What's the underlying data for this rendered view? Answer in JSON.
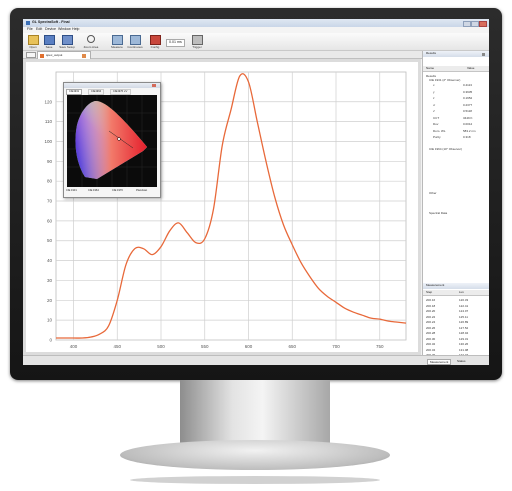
{
  "window": {
    "title": "GL SpectraSoft - Final",
    "menu": [
      "File",
      "Edit",
      "Device",
      "Window",
      "Help"
    ]
  },
  "toolbar": {
    "buttons": [
      {
        "label": "Open",
        "icon": "folder-icon"
      },
      {
        "label": "Save",
        "icon": "save-icon"
      },
      {
        "label": "Save Setup",
        "icon": "save-setup-icon"
      },
      {
        "label": "Zoom Area",
        "icon": "zoom-icon"
      },
      {
        "label": "Measure",
        "icon": "measure-icon"
      },
      {
        "label": "Continuous",
        "icon": "continuous-icon"
      },
      {
        "label": "Config",
        "icon": "config-icon"
      },
      {
        "label": "Trigger",
        "icon": "trigger-icon"
      }
    ],
    "integration_time": "0.01 ms"
  },
  "tabs": [
    {
      "label": "spec_output",
      "active": true
    }
  ],
  "results_panel": {
    "title": "Results",
    "column_headers": [
      "Name",
      "Value"
    ],
    "root": "Results",
    "groups": [
      "CIE 1931 (2° Observer)",
      "CIE 1964 (10° Observer)",
      "Other",
      "Measurement",
      "Spectral Data"
    ],
    "rows": [
      {
        "k": "x",
        "v": "0.4113"
      },
      {
        "k": "y",
        "v": "0.3935"
      },
      {
        "k": "z",
        "v": "0.1952"
      },
      {
        "k": "u'",
        "v": "0.2377"
      },
      {
        "k": "v'",
        "v": "0.5118"
      },
      {
        "k": "CCT",
        "v": "3449 K"
      },
      {
        "k": "Duv",
        "v": "0.0012"
      },
      {
        "k": "Dom. WL",
        "v": "583.2 nm"
      },
      {
        "k": "Purity",
        "v": "0.318"
      }
    ]
  },
  "measurement_panel": {
    "title": "Measurement",
    "column_headers": [
      "Step",
      "Lux"
    ],
    "rows": [
      [
        "200.16",
        "120.33"
      ],
      [
        "200.18",
        "122.41"
      ],
      [
        "200.20",
        "124.07"
      ],
      [
        "200.22",
        "125.11"
      ],
      [
        "200.24",
        "126.89"
      ],
      [
        "200.26",
        "127.52"
      ],
      [
        "200.28",
        "128.04"
      ],
      [
        "200.30",
        "129.31"
      ],
      [
        "200.32",
        "130.26"
      ],
      [
        "200.34",
        "131.08"
      ],
      [
        "200.36",
        "132.77"
      ],
      [
        "200.38",
        "133.15"
      ],
      [
        "200.40",
        "134.60"
      ],
      [
        "200.42",
        "135.02"
      ],
      [
        "200.44",
        "136.48"
      ]
    ]
  },
  "status_tabs": [
    "Measurement",
    "Status"
  ],
  "popup": {
    "tabs": [
      "CIE1931",
      "CIE1964",
      "CIE1976 u'v'"
    ],
    "options": [
      "CIE 1931",
      "CIE 1964",
      "CIE 1976",
      "Planckian"
    ]
  },
  "chart_data": {
    "type": "line",
    "title": "",
    "xlabel": "",
    "ylabel": "",
    "x": [
      380,
      390,
      400,
      410,
      420,
      430,
      440,
      450,
      460,
      470,
      480,
      490,
      500,
      510,
      520,
      530,
      540,
      550,
      560,
      570,
      580,
      590,
      600,
      610,
      620,
      630,
      640,
      650,
      660,
      670,
      680,
      690,
      700,
      710,
      720,
      730,
      740,
      750,
      760,
      770,
      780
    ],
    "series": [
      {
        "color": "#e8693a",
        "values": [
          1,
          1,
          1,
          1,
          1.5,
          3,
          7,
          20,
          38,
          46,
          46,
          43,
          47,
          55,
          59,
          54,
          49,
          51,
          66,
          98,
          116,
          133,
          130,
          110,
          90,
          72,
          58,
          48,
          39,
          32,
          26,
          22,
          19,
          16,
          14,
          12.5,
          11,
          10.5,
          9.5,
          9,
          8.5
        ]
      }
    ],
    "xlim": [
      380,
      780
    ],
    "ylim": [
      0,
      135
    ],
    "xticks": [
      400,
      450,
      500,
      550,
      600,
      650,
      700,
      750
    ],
    "yticks": [
      0,
      10,
      20,
      30,
      40,
      50,
      60,
      70,
      80,
      90,
      100,
      110,
      120
    ],
    "grid": true
  }
}
